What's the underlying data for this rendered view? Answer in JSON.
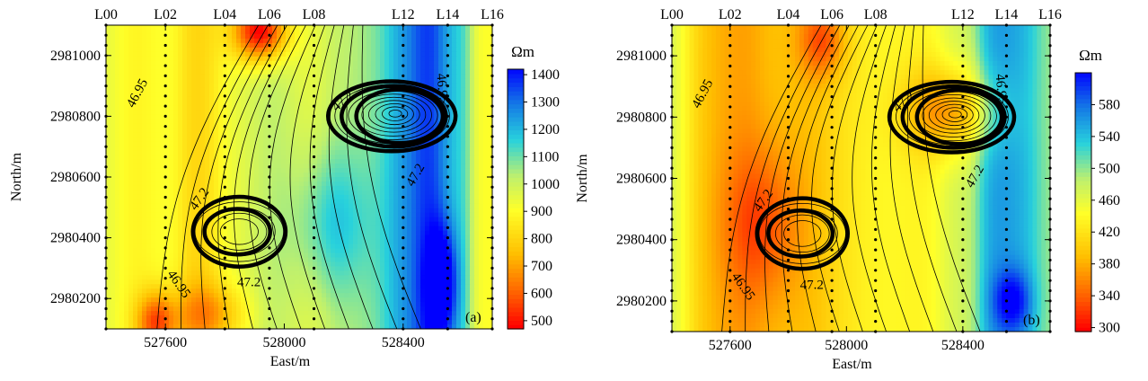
{
  "chart_data": [
    {
      "type": "heatmap",
      "panel_label": "(a)",
      "xlabel": "East/m",
      "ylabel": "North/m",
      "x_ticks": [
        527600,
        528000,
        528400
      ],
      "y_ticks": [
        2980200,
        2980400,
        2980600,
        2980800,
        2981000
      ],
      "xlim": [
        527400,
        528700
      ],
      "ylim": [
        2980100,
        2981100
      ],
      "survey_lines": [
        {
          "name": "L00",
          "x": 527400
        },
        {
          "name": "L02",
          "x": 527600
        },
        {
          "name": "L04",
          "x": 527800
        },
        {
          "name": "L06",
          "x": 527950
        },
        {
          "name": "L08",
          "x": 528100
        },
        {
          "name": "L12",
          "x": 528400
        },
        {
          "name": "L14",
          "x": 528550
        },
        {
          "name": "L16",
          "x": 528700
        }
      ],
      "colorbar": {
        "unit": "Ωm",
        "ticks": [
          500,
          600,
          700,
          800,
          900,
          1000,
          1100,
          1200,
          1300,
          1400
        ],
        "range": [
          470,
          1420
        ]
      },
      "contour_labels": [
        "46.95",
        "47.2",
        "47.2",
        "47.2",
        "46.95",
        "47.2",
        "46.95"
      ],
      "colors": {
        "low": "#ff0000",
        "mid": "#ffff00",
        "high": "#0000ff"
      }
    },
    {
      "type": "heatmap",
      "panel_label": "(b)",
      "xlabel": "East/m",
      "ylabel": "North/m",
      "x_ticks": [
        527600,
        528000,
        528400
      ],
      "y_ticks": [
        2980200,
        2980400,
        2980600,
        2980800,
        2981000
      ],
      "xlim": [
        527400,
        528700
      ],
      "ylim": [
        2980100,
        2981100
      ],
      "survey_lines": [
        {
          "name": "L00",
          "x": 527400
        },
        {
          "name": "L02",
          "x": 527600
        },
        {
          "name": "L04",
          "x": 527800
        },
        {
          "name": "L06",
          "x": 527950
        },
        {
          "name": "L08",
          "x": 528100
        },
        {
          "name": "L12",
          "x": 528400
        },
        {
          "name": "L14",
          "x": 528550
        },
        {
          "name": "L16",
          "x": 528700
        }
      ],
      "colorbar": {
        "unit": "Ωm",
        "ticks": [
          300,
          340,
          380,
          420,
          460,
          500,
          540,
          580
        ],
        "range": [
          295,
          620
        ]
      },
      "contour_labels": [
        "46.95",
        "47.2",
        "47.2",
        "47.2",
        "46.95",
        "47.2",
        "46.95"
      ],
      "colors": {
        "low": "#ff0000",
        "mid": "#ffff00",
        "high": "#0000ff"
      }
    }
  ]
}
